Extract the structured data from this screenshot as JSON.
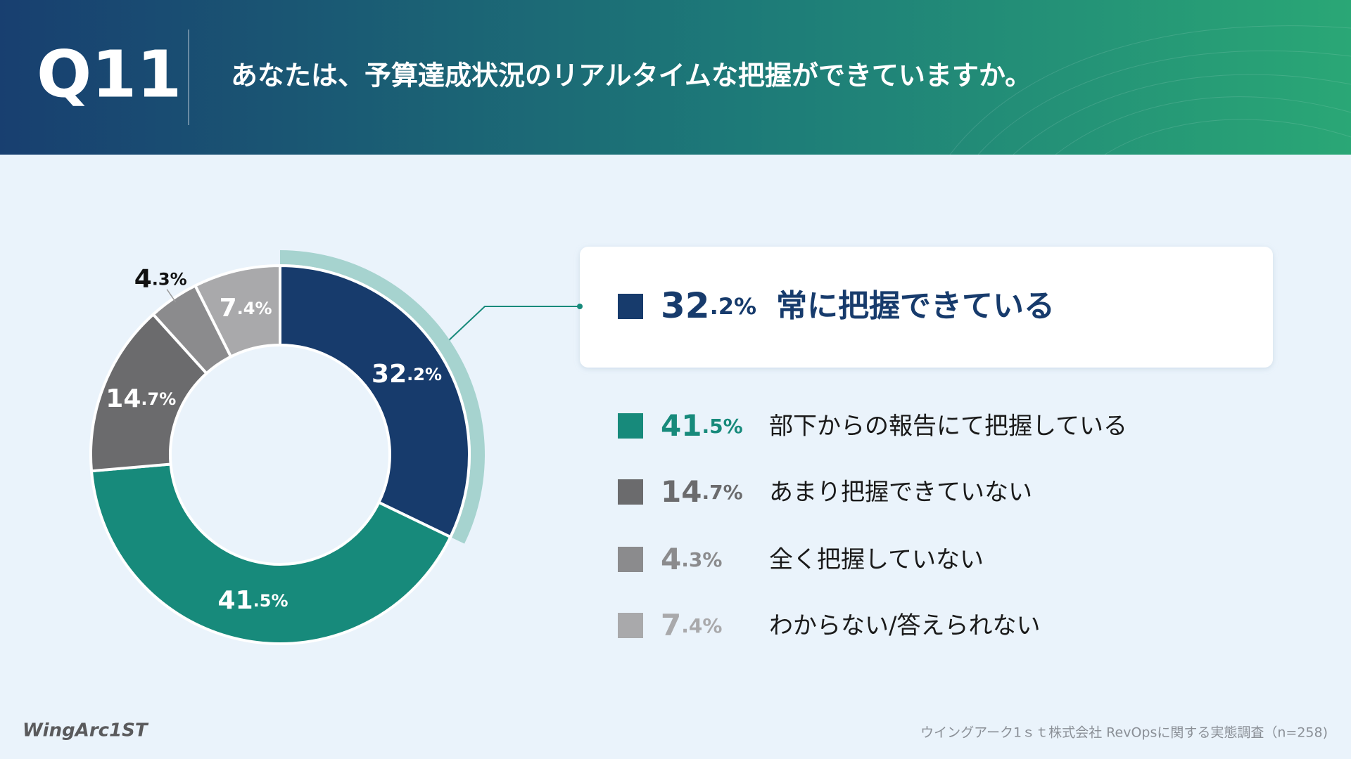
{
  "question_number": "Q11",
  "chart_data": {
    "type": "donut",
    "title": "あなたは、予算達成状況のリアルタイムな把握ができていますか。",
    "categories": [
      "常に把握できている",
      "部下からの報告にて把握している",
      "あまり把握できていない",
      "全く把握していない",
      "わからない/答えられない"
    ],
    "values": [
      32.2,
      41.5,
      14.7,
      4.3,
      7.4
    ],
    "value_labels": [
      "32.2%",
      "41.5%",
      "14.7%",
      "4.3%",
      "7.4%"
    ],
    "colors": [
      "#173b6c",
      "#178a7b",
      "#6b6b6d",
      "#8b8b8d",
      "#a9a9ab"
    ]
  },
  "footer": {
    "logo": "WingArc1ST",
    "source": "ウイングアーク1ｓｔ株式会社 RevOpsに関する実態調査（n=258)"
  }
}
